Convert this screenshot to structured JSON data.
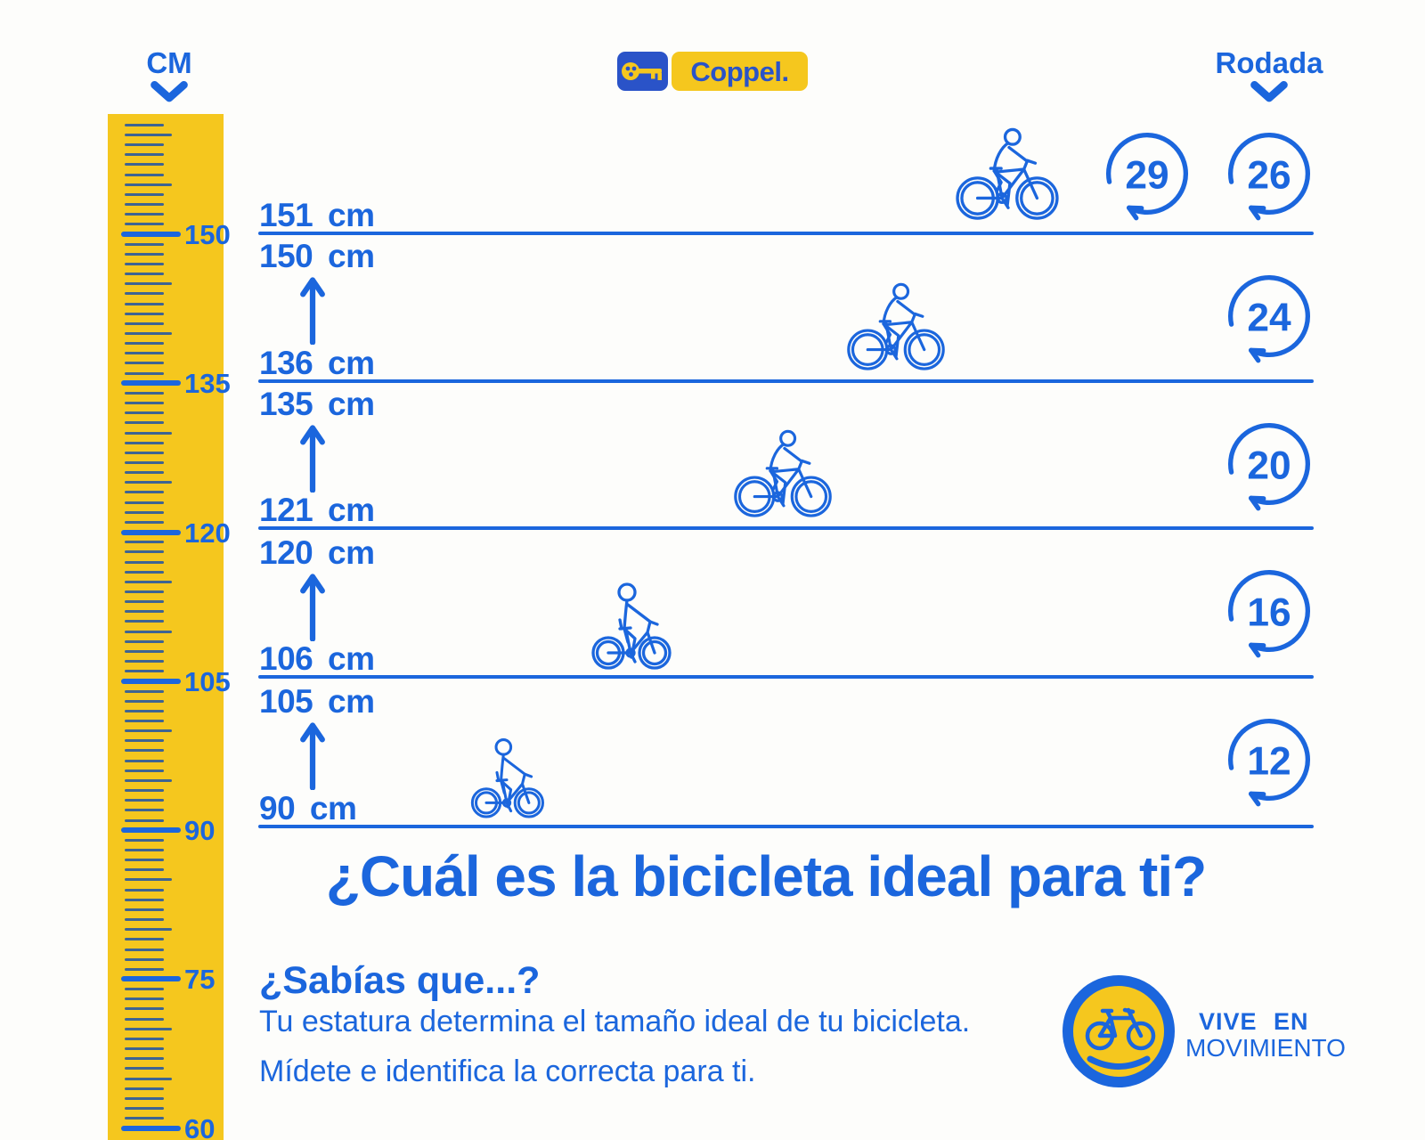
{
  "colors": {
    "blue": "#1b66dd",
    "yellow": "#f5c71e",
    "logo_blue": "#2a53c8",
    "minor_tick": "#3e6492"
  },
  "header": {
    "ruler_unit": "CM",
    "wheel_size_label": "Rodada"
  },
  "brand": {
    "wordmark": "Coppel."
  },
  "ruler": {
    "unit": "cm",
    "major_ticks": [
      "150",
      "135",
      "120",
      "105",
      "90",
      "75",
      "60"
    ]
  },
  "rows": [
    {
      "height_min": "151 cm",
      "wheels": [
        "29",
        "26"
      ],
      "rider": "adult"
    },
    {
      "height_max": "150 cm",
      "height_min": "136 cm",
      "wheels": [
        "24"
      ],
      "rider": "adult"
    },
    {
      "height_max": "135 cm",
      "height_min": "121 cm",
      "wheels": [
        "20"
      ],
      "rider": "adult"
    },
    {
      "height_max": "120 cm",
      "height_min": "106 cm",
      "wheels": [
        "16"
      ],
      "rider": "kid"
    },
    {
      "height_max": "105 cm",
      "height_min": "90 cm",
      "wheels": [
        "12"
      ],
      "rider": "kid"
    }
  ],
  "title": "¿Cuál es la bicicleta ideal para ti?",
  "fact": {
    "heading": "¿Sabías que...?",
    "line1": "Tu estatura determina el tamaño ideal de tu bicicleta.",
    "line2": "Mídete e identifica la correcta para ti."
  },
  "movement_logo": {
    "line1": "VIVE EN",
    "line2": "MOVIMIENTO"
  }
}
